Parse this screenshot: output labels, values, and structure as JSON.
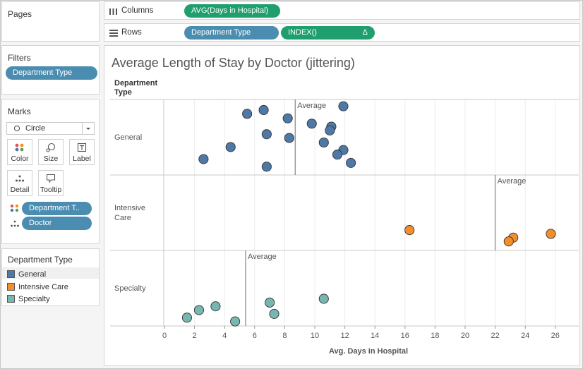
{
  "left_panel": {
    "pages_title": "Pages",
    "filters_title": "Filters",
    "filters": [
      "Department Type"
    ],
    "marks_title": "Marks",
    "mark_type": "Circle",
    "mark_buttons": [
      {
        "label": "Color",
        "icon": "color-dots-icon"
      },
      {
        "label": "Size",
        "icon": "size-icon"
      },
      {
        "label": "Label",
        "icon": "text-label-icon"
      },
      {
        "label": "Detail",
        "icon": "detail-dots-icon"
      },
      {
        "label": "Tooltip",
        "icon": "tooltip-icon"
      }
    ],
    "mark_fields": [
      {
        "label": "Department T..",
        "icon": "color-dots-icon"
      },
      {
        "label": "Doctor",
        "icon": "detail-dots-icon"
      }
    ],
    "legend_title": "Department Type",
    "legend": [
      {
        "label": "General",
        "color": "#4e79a7"
      },
      {
        "label": "Intensive Care",
        "color": "#f28e2b"
      },
      {
        "label": "Specialty",
        "color": "#76b7b2"
      }
    ]
  },
  "shelves": {
    "columns_label": "Columns",
    "columns_pills": [
      "AVG(Days in Hospital)"
    ],
    "rows_label": "Rows",
    "rows_pills": [
      "Department Type",
      "INDEX()"
    ],
    "delta_symbol": "Δ"
  },
  "chart_data": {
    "type": "scatter",
    "title": "Average Length of Stay by Doctor (jittering)",
    "row_header": "Department Type",
    "xlabel": "Avg. Days in Hospital",
    "xlim": [
      0,
      27
    ],
    "xticks": [
      0,
      2,
      4,
      6,
      8,
      10,
      12,
      14,
      16,
      18,
      20,
      22,
      24,
      26
    ],
    "reference_line_label": "Average",
    "rows": [
      {
        "name": "General",
        "color": "#4e79a7",
        "average": 8.7,
        "points": [
          {
            "x": 5.5,
            "y": 0.81
          },
          {
            "x": 6.6,
            "y": 0.86
          },
          {
            "x": 8.2,
            "y": 0.75
          },
          {
            "x": 11.9,
            "y": 0.91
          },
          {
            "x": 9.8,
            "y": 0.68
          },
          {
            "x": 11.1,
            "y": 0.64
          },
          {
            "x": 11.0,
            "y": 0.59
          },
          {
            "x": 6.8,
            "y": 0.54
          },
          {
            "x": 8.3,
            "y": 0.49
          },
          {
            "x": 10.6,
            "y": 0.43
          },
          {
            "x": 4.4,
            "y": 0.37
          },
          {
            "x": 11.9,
            "y": 0.33
          },
          {
            "x": 11.5,
            "y": 0.27
          },
          {
            "x": 2.6,
            "y": 0.21
          },
          {
            "x": 12.4,
            "y": 0.16
          },
          {
            "x": 6.8,
            "y": 0.11
          }
        ]
      },
      {
        "name": "Intensive\nCare",
        "color": "#f28e2b",
        "average": 22.0,
        "points": [
          {
            "x": 16.3,
            "y": 0.27
          },
          {
            "x": 25.7,
            "y": 0.22
          },
          {
            "x": 23.2,
            "y": 0.17
          },
          {
            "x": 22.9,
            "y": 0.12
          }
        ]
      },
      {
        "name": "Specialty",
        "color": "#76b7b2",
        "average": 5.4,
        "points": [
          {
            "x": 10.6,
            "y": 0.36
          },
          {
            "x": 7.0,
            "y": 0.31
          },
          {
            "x": 3.4,
            "y": 0.26
          },
          {
            "x": 2.3,
            "y": 0.21
          },
          {
            "x": 7.3,
            "y": 0.16
          },
          {
            "x": 1.5,
            "y": 0.11
          },
          {
            "x": 4.7,
            "y": 0.06
          }
        ]
      }
    ]
  }
}
